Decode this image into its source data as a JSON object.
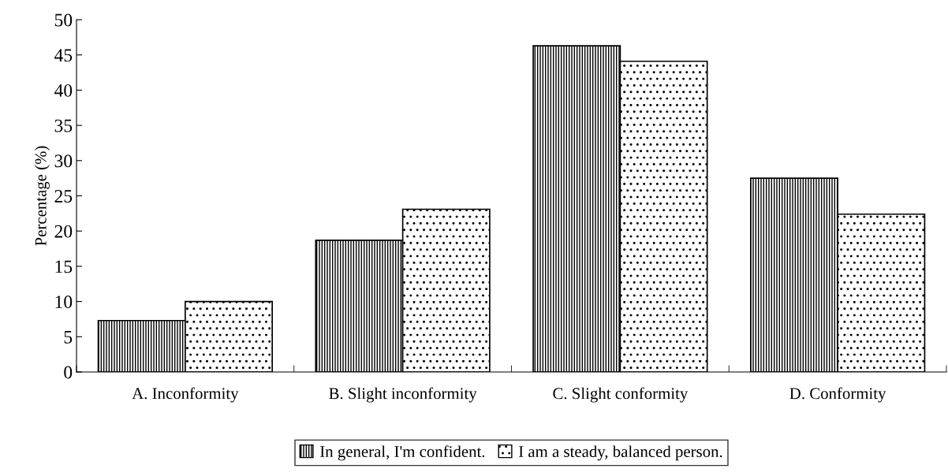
{
  "chart_data": {
    "type": "bar",
    "ylabel": "Percentage (%)",
    "categories": [
      "A. Inconformity",
      "B. Slight inconformity",
      "C. Slight conformity",
      "D. Conformity"
    ],
    "series": [
      {
        "name": "In general, I'm confident.",
        "color": "#000000",
        "values": [
          7.3,
          18.7,
          46.3,
          27.5
        ]
      },
      {
        "name": "I am a steady, balanced person.",
        "color": "#000000",
        "values": [
          10.0,
          23.1,
          44.1,
          22.4
        ]
      }
    ],
    "ylim": [
      0,
      50
    ],
    "yticks": [
      0,
      5,
      10,
      15,
      20,
      25,
      30,
      35,
      40,
      45,
      50
    ],
    "grid": false,
    "legend": "bottom"
  }
}
